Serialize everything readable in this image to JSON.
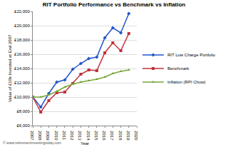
{
  "chart_data": {
    "type": "line",
    "title": "RIT Portfolio Performance vs Benchmark vs Inflation",
    "x_label": "Year",
    "y_label": "Value of £10k Invested at End 2007",
    "annotations": [
      "© www.retirementinvestingtoday.com"
    ],
    "x": [
      2007,
      2008,
      2009,
      2010,
      2011,
      2012,
      2013,
      2014,
      2015,
      2016,
      2017,
      2018,
      2019
    ],
    "series": [
      {
        "name": "RIT Low Charge Portfolio",
        "color": "#2255cc",
        "marker": "diamond",
        "values": [
          10000,
          8600,
          10500,
          12100,
          12400,
          13900,
          14700,
          15400,
          15600,
          18300,
          19700,
          19000,
          21700
        ]
      },
      {
        "name": "Benchmark",
        "color": "#c0303a",
        "marker": "square",
        "values": [
          10000,
          7900,
          9500,
          10600,
          10700,
          11900,
          13200,
          13800,
          13700,
          16200,
          17600,
          16500,
          18900
        ]
      },
      {
        "name": "Inflation (RPI Chow)",
        "color": "#7aa63a",
        "marker": "triangle-up",
        "values": [
          10000,
          10000,
          10300,
          10800,
          11400,
          11800,
          12100,
          12300,
          12500,
          12800,
          13300,
          13600,
          13800
        ]
      }
    ],
    "xlim": [
      2007,
      2020
    ],
    "xticks": [
      2007,
      2008,
      2009,
      2010,
      2011,
      2012,
      2013,
      2014,
      2015,
      2016,
      2017,
      2018,
      2019,
      2020
    ],
    "ylim": [
      6000,
      22000
    ],
    "yticks": [
      {
        "value": 6000,
        "label": "£6,000"
      },
      {
        "value": 8000,
        "label": "£8,000"
      },
      {
        "value": 10000,
        "label": "£10,000"
      },
      {
        "value": 12000,
        "label": "£12,000"
      },
      {
        "value": 14000,
        "label": "£14,000"
      },
      {
        "value": 16000,
        "label": "£16,000"
      },
      {
        "value": 18000,
        "label": "£18,000"
      },
      {
        "value": 20000,
        "label": "£20,000"
      },
      {
        "value": 22000,
        "label": "£22,000"
      }
    ],
    "grid": true,
    "legend": "right"
  }
}
